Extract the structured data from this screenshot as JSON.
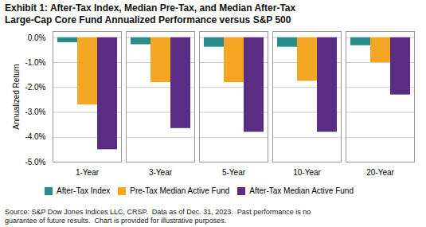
{
  "chart_data": {
    "type": "bar",
    "title": "Exhibit 1: After-Tax Index, Median Pre-Tax, and Median After-Tax\nLarge-Cap Core Fund Annualized Performance versus S&P 500",
    "categories": [
      "1-Year",
      "3-Year",
      "5-Year",
      "10-Year",
      "20-Year"
    ],
    "series": [
      {
        "name": "After-Tax Index",
        "color": "#2B8C8C",
        "values": [
          -0.2,
          -0.28,
          -0.38,
          -0.38,
          -0.32
        ]
      },
      {
        "name": "Pre-Tax Median Active Fund",
        "color": "#F5A623",
        "values": [
          -2.7,
          -1.8,
          -1.8,
          -1.75,
          -1.0
        ]
      },
      {
        "name": "After-Tax Median Active Fund",
        "color": "#5B2D82",
        "values": [
          -4.5,
          -3.65,
          -3.8,
          -3.8,
          -2.3
        ]
      }
    ],
    "ylim": [
      -5.0,
      0.25
    ],
    "yticks": [
      {
        "value": 0.0,
        "label": "0.0%"
      },
      {
        "value": -1.0,
        "label": "-1.0%"
      },
      {
        "value": -2.0,
        "label": "-2.0%"
      },
      {
        "value": -3.0,
        "label": "-3.0%"
      },
      {
        "value": -4.0,
        "label": "-4.0%"
      },
      {
        "value": -5.0,
        "label": "-5.0%"
      }
    ],
    "ylabel": "Annualized Return",
    "caption": "Source: S&P Dow Jones Indices LLC, CRSP.  Data as of Dec. 31, 2023.  Past performance is no\nguarantee of future results.  Chart is provided for illustrative purposes.",
    "grid": true,
    "legend": "bottom"
  }
}
